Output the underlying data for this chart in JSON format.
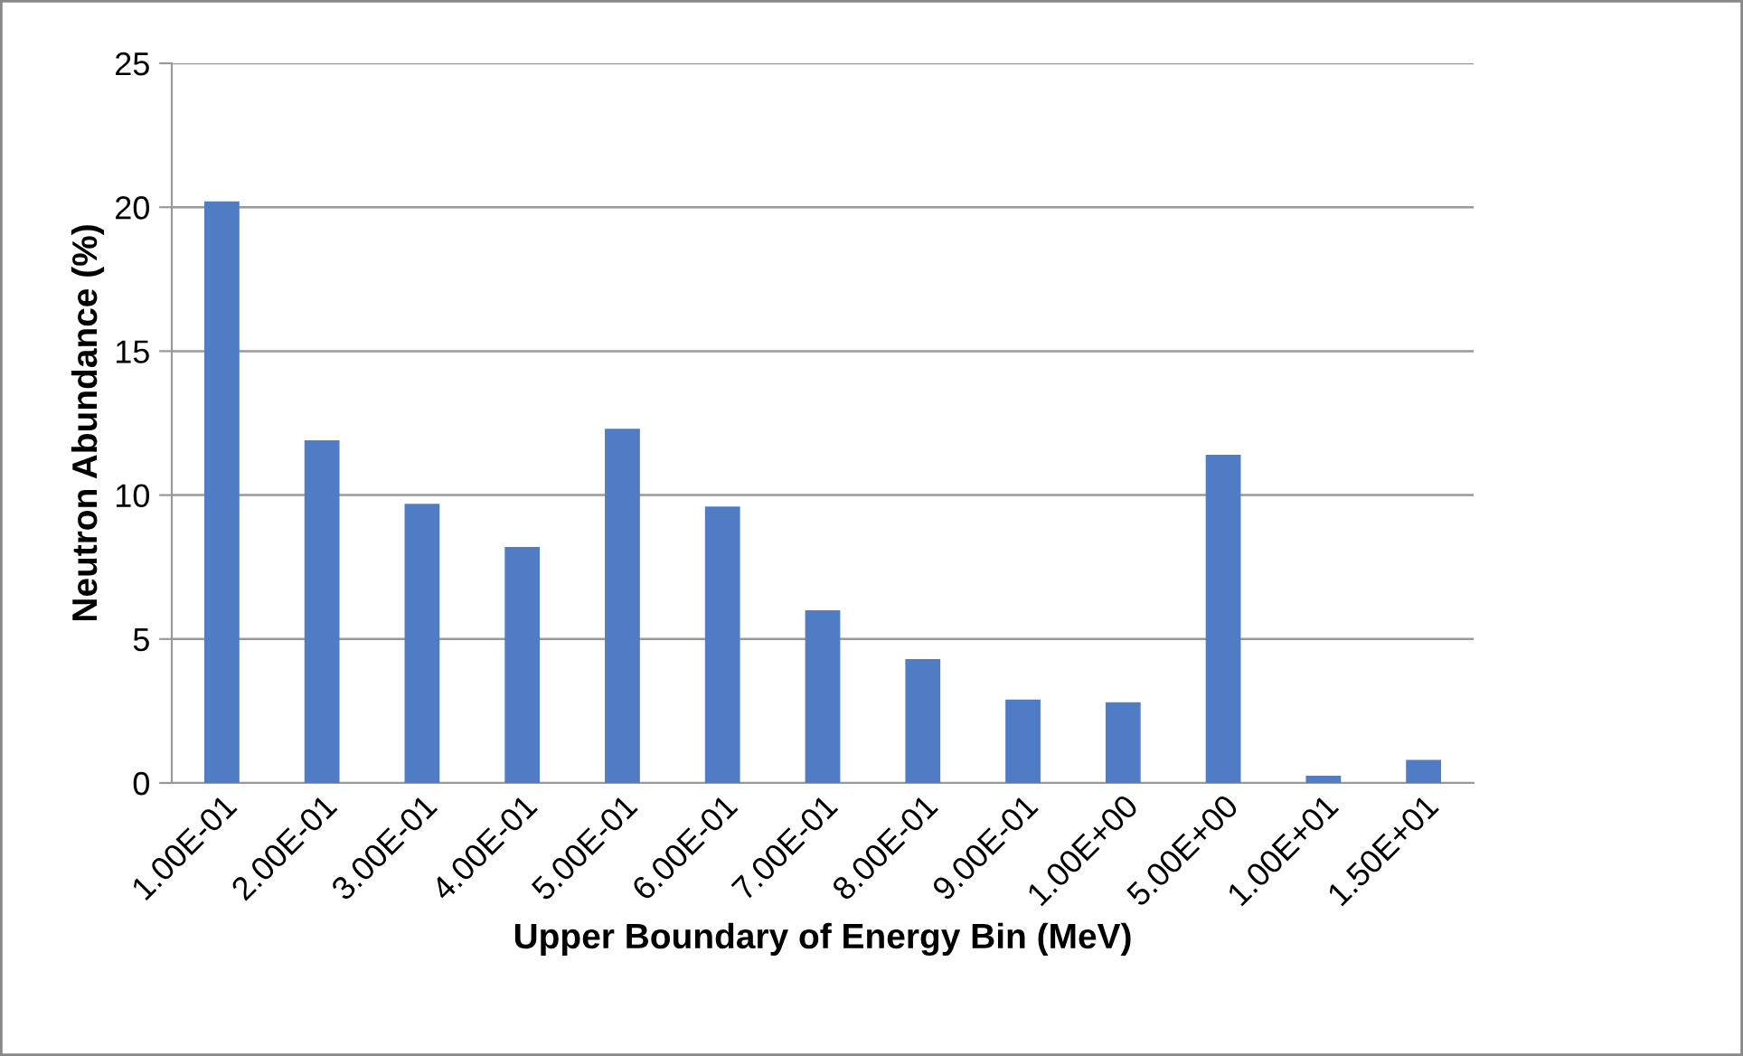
{
  "chart_data": {
    "type": "bar",
    "xlabel": "Upper Boundary of Energy Bin (MeV)",
    "ylabel": "Neutron Abundance (%)",
    "categories": [
      "1.00E-01",
      "2.00E-01",
      "3.00E-01",
      "4.00E-01",
      "5.00E-01",
      "6.00E-01",
      "7.00E-01",
      "8.00E-01",
      "9.00E-01",
      "1.00E+00",
      "5.00E+00",
      "1.00E+01",
      "1.50E+01"
    ],
    "values": [
      20.2,
      11.9,
      9.7,
      8.2,
      12.3,
      9.6,
      6.0,
      4.3,
      2.9,
      2.8,
      11.4,
      0.25,
      0.8
    ],
    "color": "#4f7cc4",
    "ylim": [
      0,
      25
    ],
    "yticks": [
      0,
      5,
      10,
      15,
      20,
      25
    ],
    "grid": "y",
    "legend": false
  }
}
